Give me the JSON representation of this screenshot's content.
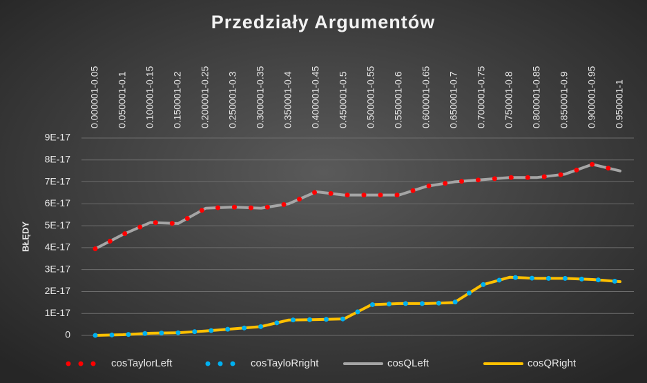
{
  "chart_data": {
    "type": "line",
    "title": "Przedziały Argumentów",
    "y_label": "BŁĘDY",
    "categories": [
      "0.000001-0.05",
      "0.050001-0.1",
      "0.100001-0.15",
      "0.150001-0.2",
      "0.200001-0.25",
      "0.250001-0.3",
      "0.300001-0.35",
      "0.350001-0.4",
      "0.400001-0.45",
      "0.450001-0.5",
      "0.500001-0.55",
      "0.550001-0.6",
      "0.600001-0.65",
      "0.650001-0.7",
      "0.700001-0.75",
      "0.750001-0.8",
      "0.800001-0.85",
      "0.850001-0.9",
      "0.900001-0.95",
      "0.950001-1"
    ],
    "series": [
      {
        "name": "cosTaylorLeft",
        "color": "#ff0000",
        "style": "dot",
        "values": [
          3.95e-17,
          4.6e-17,
          5.15e-17,
          5.1e-17,
          5.8e-17,
          5.85e-17,
          5.8e-17,
          6e-17,
          6.55e-17,
          6.4e-17,
          6.4e-17,
          6.4e-17,
          6.8e-17,
          7e-17,
          7.1e-17,
          7.2e-17,
          7.2e-17,
          7.35e-17,
          7.8e-17,
          7.5e-17
        ]
      },
      {
        "name": "cosTayloRright",
        "color": "#00b0f0",
        "style": "dot",
        "values": [
          0,
          3e-19,
          1e-18,
          1.2e-18,
          2e-18,
          3e-18,
          4e-18,
          7e-18,
          7.2e-18,
          7.5e-18,
          1.4e-17,
          1.45e-17,
          1.45e-17,
          1.5e-17,
          2.3e-17,
          2.65e-17,
          2.6e-17,
          2.6e-17,
          2.55e-17,
          2.45e-17
        ]
      },
      {
        "name": "cosQLeft",
        "color": "#a5a5a5",
        "style": "solid",
        "values": [
          3.95e-17,
          4.6e-17,
          5.15e-17,
          5.1e-17,
          5.8e-17,
          5.85e-17,
          5.8e-17,
          6e-17,
          6.55e-17,
          6.4e-17,
          6.4e-17,
          6.4e-17,
          6.8e-17,
          7e-17,
          7.1e-17,
          7.2e-17,
          7.2e-17,
          7.35e-17,
          7.8e-17,
          7.5e-17
        ]
      },
      {
        "name": "cosQRight",
        "color": "#ffc000",
        "style": "solid",
        "values": [
          0,
          3e-19,
          1e-18,
          1.2e-18,
          2e-18,
          3e-18,
          4e-18,
          7e-18,
          7.2e-18,
          7.5e-18,
          1.4e-17,
          1.45e-17,
          1.45e-17,
          1.5e-17,
          2.3e-17,
          2.65e-17,
          2.6e-17,
          2.6e-17,
          2.55e-17,
          2.45e-17
        ]
      }
    ],
    "ylim": [
      0,
      9e-17
    ],
    "yticks": [
      0,
      {
        "value": 1e-17,
        "label": "1E-17"
      },
      {
        "value": 2e-17,
        "label": "2E-17"
      },
      {
        "value": 3e-17,
        "label": "3E-17"
      },
      {
        "value": 4e-17,
        "label": "4E-17"
      },
      {
        "value": 5e-17,
        "label": "5E-17"
      },
      {
        "value": 6e-17,
        "label": "6E-17"
      },
      {
        "value": 7e-17,
        "label": "7E-17"
      },
      {
        "value": 8e-17,
        "label": "8E-17"
      },
      {
        "value": 9e-17,
        "label": "9E-17"
      }
    ],
    "grid": true,
    "legend": "bottom"
  }
}
